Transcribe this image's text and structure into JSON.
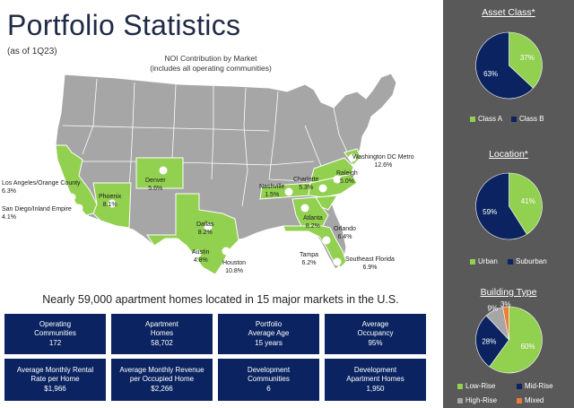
{
  "header": {
    "title": "Portfolio Statistics",
    "subtitle": "(as of 1Q23)"
  },
  "map": {
    "caption_line1": "NOI Contribution by Market",
    "caption_line2": "(includes all operating communities)",
    "markets": [
      {
        "name": "Los Angeles/Orange County",
        "value": "6.3%"
      },
      {
        "name": "San Diego/Inland Empire",
        "value": "4.1%"
      },
      {
        "name": "Phoenix",
        "value": "8.1%"
      },
      {
        "name": "Denver",
        "value": "5.6%"
      },
      {
        "name": "Dallas",
        "value": "8.2%"
      },
      {
        "name": "Austin",
        "value": "4.8%"
      },
      {
        "name": "Houston",
        "value": "10.8%"
      },
      {
        "name": "Nashville",
        "value": "1.5%"
      },
      {
        "name": "Charlotte",
        "value": "5.3%"
      },
      {
        "name": "Raleigh",
        "value": "5.0%"
      },
      {
        "name": "Washington DC Metro",
        "value": "12.6%"
      },
      {
        "name": "Atlanta",
        "value": "8.2%"
      },
      {
        "name": "Orlando",
        "value": "6.4%"
      },
      {
        "name": "Tampa",
        "value": "6.2%"
      },
      {
        "name": "Southeast Florida",
        "value": "6.9%"
      }
    ],
    "colors": {
      "land": "#a6a6a6",
      "market_state": "#92d050",
      "border": "#ffffff"
    }
  },
  "tagline": "Nearly 59,000 apartment homes located in 15 major markets in the U.S.",
  "stats": [
    {
      "label1": "Operating",
      "label2": "Communities",
      "value": "172"
    },
    {
      "label1": "Apartment",
      "label2": "Homes",
      "value": "58,702"
    },
    {
      "label1": "Portfolio",
      "label2": "Average Age",
      "value": "15 years"
    },
    {
      "label1": "Average",
      "label2": "Occupancy",
      "value": "95%"
    },
    {
      "label1": "Average Monthly Rental",
      "label2": "Rate per Home",
      "value": "$1,966"
    },
    {
      "label1": "Average Monthly Revenue",
      "label2": "per Occupied Home",
      "value": "$2,266"
    },
    {
      "label1": "Development",
      "label2": "Communities",
      "value": "6"
    },
    {
      "label1": "Development",
      "label2": "Apartment Homes",
      "value": "1,950"
    }
  ],
  "chart_data": [
    {
      "type": "pie",
      "title": "Asset Class*",
      "categories": [
        "Class A",
        "Class B"
      ],
      "values": [
        37,
        63
      ],
      "labels": [
        "37%",
        "63%"
      ],
      "colors": [
        "#92d050",
        "#0b2461"
      ],
      "legend": "bottom"
    },
    {
      "type": "pie",
      "title": "Location*",
      "categories": [
        "Urban",
        "Suburban"
      ],
      "values": [
        41,
        59
      ],
      "labels": [
        "41%",
        "59%"
      ],
      "colors": [
        "#92d050",
        "#0b2461"
      ],
      "legend": "bottom"
    },
    {
      "type": "pie",
      "title": "Building Type",
      "categories": [
        "Low-Rise",
        "Mid-Rise",
        "High-Rise",
        "Mixed"
      ],
      "values": [
        60,
        28,
        9,
        3
      ],
      "labels": [
        "60%",
        "28%",
        "9%",
        "3%"
      ],
      "colors": [
        "#92d050",
        "#0b2461",
        "#a6a6a6",
        "#ed7d31"
      ],
      "legend": "bottom"
    }
  ]
}
